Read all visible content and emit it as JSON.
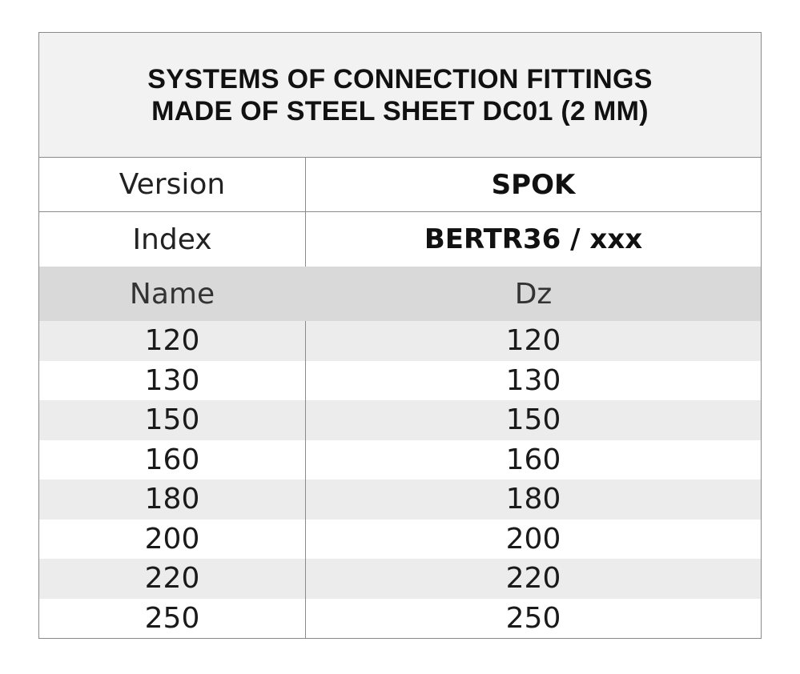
{
  "title": {
    "line1": "SYSTEMS OF CONNECTION FITTINGS",
    "line2": "MADE OF STEEL SHEET DC01 (2 MM)"
  },
  "meta": {
    "version_label": "Version",
    "version_value": "SPOK",
    "index_label": "Index",
    "index_value": "BERTR36 / xxx"
  },
  "columns": {
    "name": "Name",
    "dz": "Dz"
  },
  "rows": [
    {
      "name": "120",
      "dz": "120"
    },
    {
      "name": "130",
      "dz": "130"
    },
    {
      "name": "150",
      "dz": "150"
    },
    {
      "name": "160",
      "dz": "160"
    },
    {
      "name": "180",
      "dz": "180"
    },
    {
      "name": "200",
      "dz": "200"
    },
    {
      "name": "220",
      "dz": "220"
    },
    {
      "name": "250",
      "dz": "250"
    }
  ]
}
